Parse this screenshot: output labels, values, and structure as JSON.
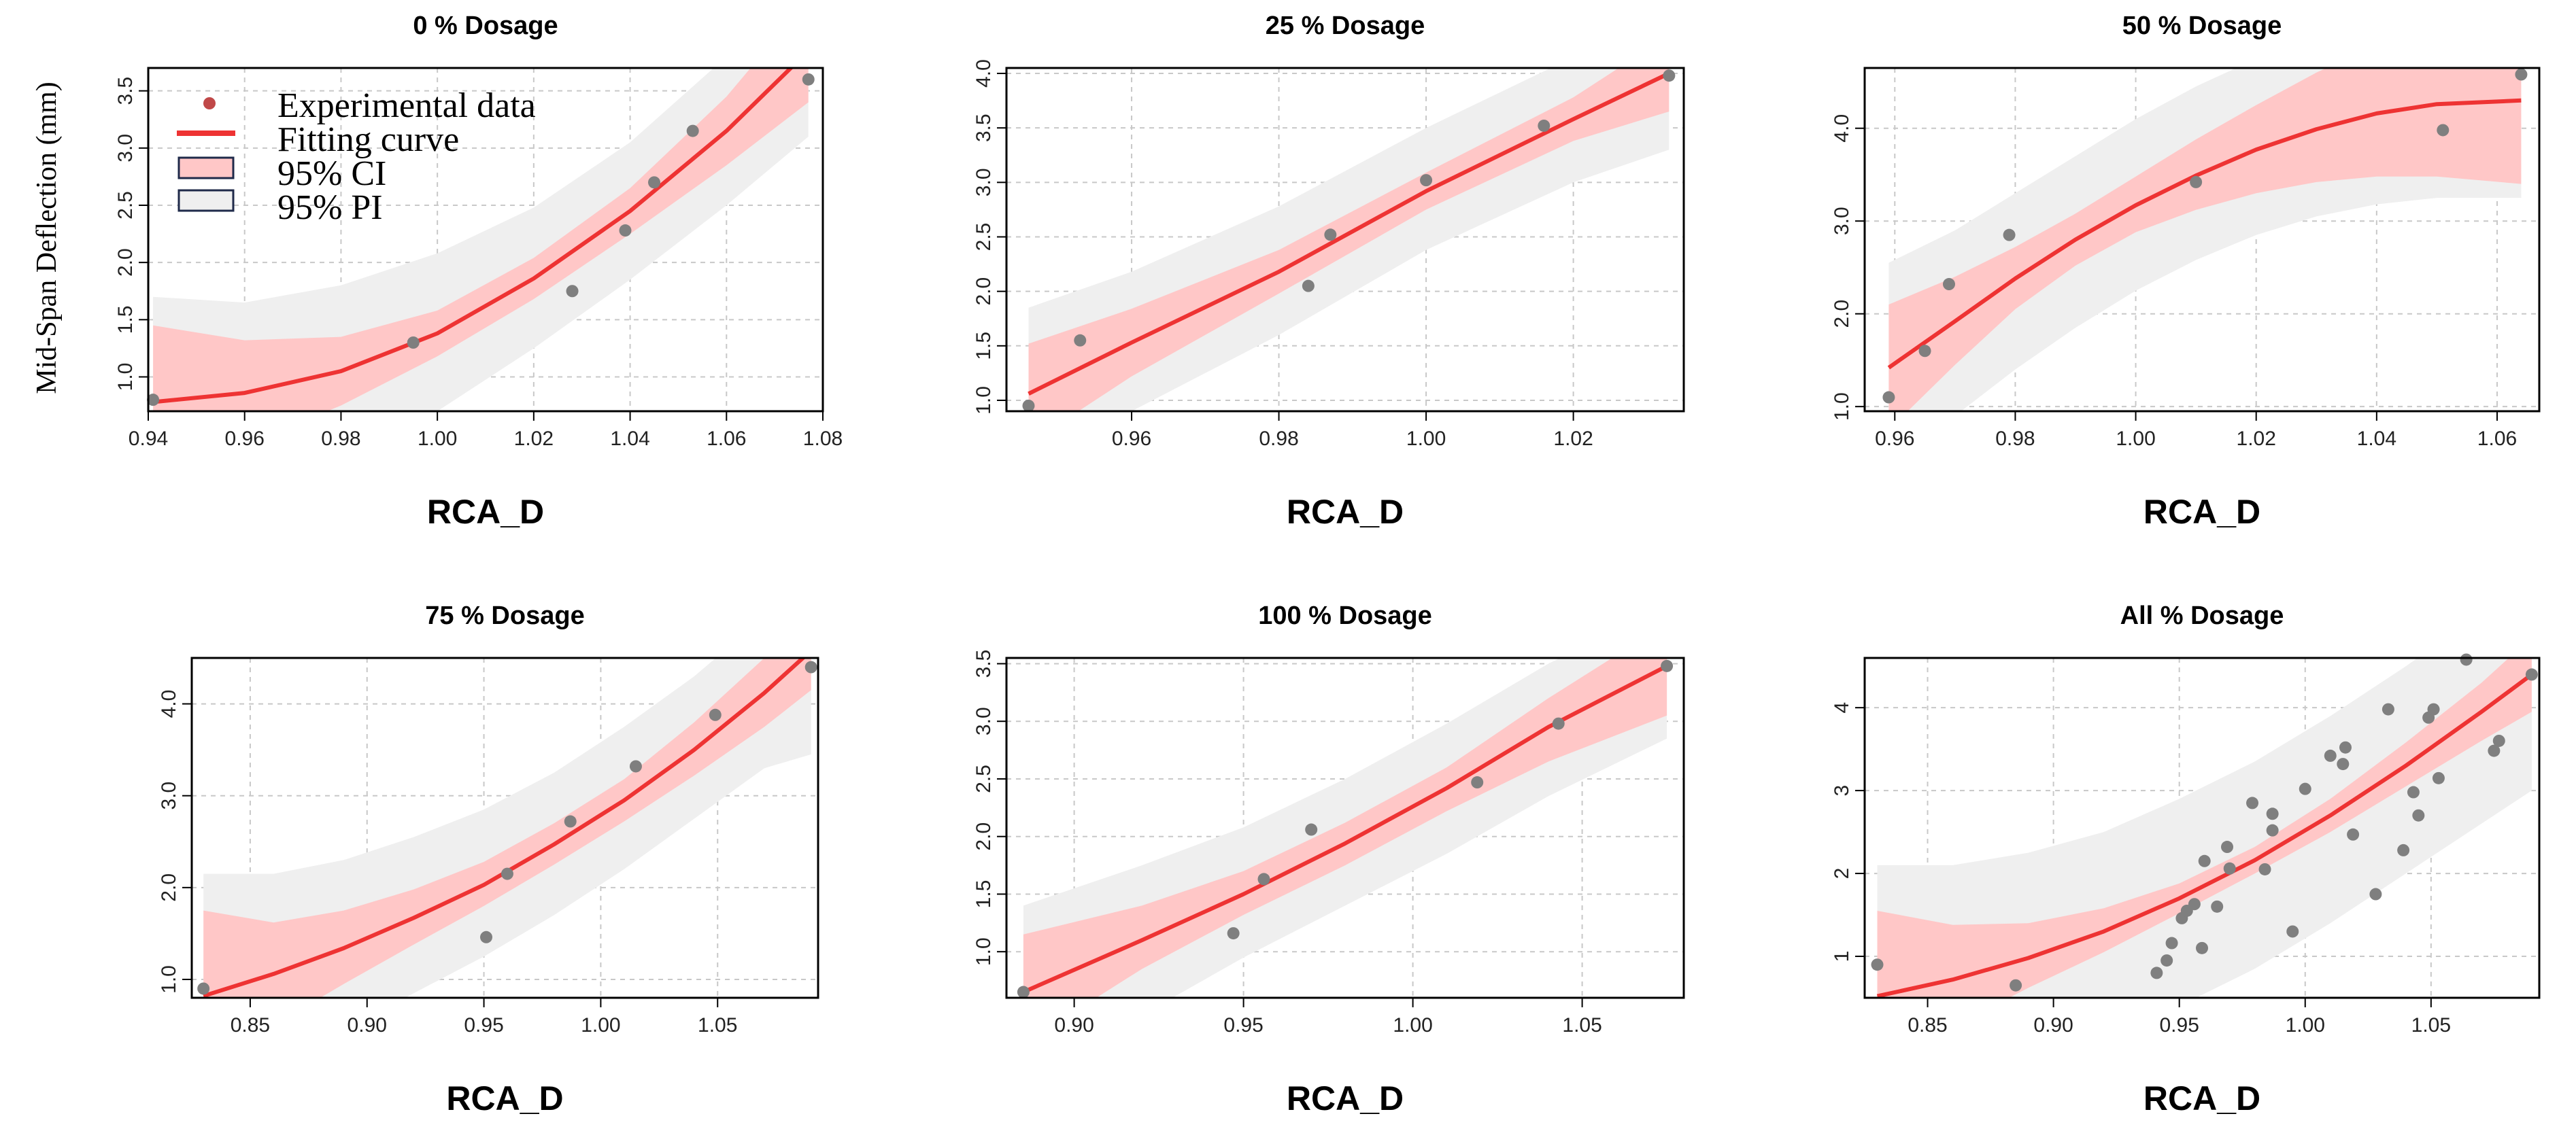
{
  "figure": {
    "ylabel": "Mid-Span Deflection (mm)",
    "legend": {
      "experimental": "Experimental data",
      "fitting": "Fitting curve",
      "ci": "95% CI",
      "pi": "95% PI"
    },
    "colors": {
      "points": "#7f7f7f",
      "curve": "#ee3333",
      "ci_band": "#ffc7c7",
      "pi_band": "#efefef",
      "legend_point": "#c04848",
      "legend_box_border": "#1f2a4a"
    }
  },
  "chart_data": [
    {
      "type": "scatter",
      "title": "0 % Dosage",
      "xlabel": "RCA_D",
      "xlim": [
        0.94,
        1.08
      ],
      "ylim": [
        0.7,
        3.7
      ],
      "xticks": [
        0.94,
        0.96,
        0.98,
        1.0,
        1.02,
        1.04,
        1.06,
        1.08
      ],
      "yticks": [
        1.0,
        1.5,
        2.0,
        2.5,
        3.0,
        3.5
      ],
      "ytick_decimals": 1,
      "xtick_decimals": 2,
      "legend": true,
      "points": {
        "x": [
          0.941,
          0.995,
          1.028,
          1.039,
          1.045,
          1.053,
          1.077
        ],
        "y": [
          0.8,
          1.3,
          1.75,
          2.28,
          2.7,
          3.15,
          3.6
        ]
      },
      "fit": {
        "x": [
          0.941,
          0.96,
          0.98,
          1.0,
          1.02,
          1.04,
          1.06,
          1.077
        ],
        "y": [
          0.78,
          0.86,
          1.05,
          1.38,
          1.86,
          2.45,
          3.15,
          3.85
        ]
      },
      "ci": {
        "x": [
          0.941,
          0.96,
          0.98,
          1.0,
          1.02,
          1.04,
          1.06,
          1.077
        ],
        "lower": [
          0.1,
          0.4,
          0.75,
          1.18,
          1.68,
          2.25,
          2.85,
          3.4
        ],
        "upper": [
          1.45,
          1.32,
          1.35,
          1.58,
          2.04,
          2.65,
          3.45,
          4.3
        ]
      },
      "pi": {
        "x": [
          0.941,
          0.96,
          0.98,
          1.0,
          1.02,
          1.04,
          1.06,
          1.077
        ],
        "lower": [
          -0.1,
          0.05,
          0.3,
          0.7,
          1.25,
          1.85,
          2.5,
          3.1
        ],
        "upper": [
          1.7,
          1.65,
          1.8,
          2.08,
          2.48,
          3.05,
          3.8,
          4.5
        ]
      }
    },
    {
      "type": "scatter",
      "title": "25 % Dosage",
      "xlabel": "RCA_D",
      "xlim": [
        0.943,
        1.035
      ],
      "ylim": [
        0.9,
        4.05
      ],
      "xticks": [
        0.96,
        0.98,
        1.0,
        1.02
      ],
      "yticks": [
        1.0,
        1.5,
        2.0,
        2.5,
        3.0,
        3.5,
        4.0
      ],
      "ytick_decimals": 1,
      "xtick_decimals": 2,
      "legend": false,
      "points": {
        "x": [
          0.946,
          0.953,
          0.984,
          0.987,
          1.0,
          1.016,
          1.033
        ],
        "y": [
          0.95,
          1.55,
          2.05,
          2.52,
          3.02,
          3.52,
          3.98
        ]
      },
      "fit": {
        "x": [
          0.946,
          0.96,
          0.98,
          1.0,
          1.02,
          1.033
        ],
        "y": [
          1.06,
          1.53,
          2.18,
          2.92,
          3.58,
          4.0
        ]
      },
      "ci": {
        "x": [
          0.946,
          0.96,
          0.98,
          1.0,
          1.02,
          1.033
        ],
        "lower": [
          0.6,
          1.22,
          1.98,
          2.75,
          3.38,
          3.65
        ],
        "upper": [
          1.52,
          1.84,
          2.38,
          3.09,
          3.78,
          4.35
        ]
      },
      "pi": {
        "x": [
          0.946,
          0.96,
          0.98,
          1.0,
          1.02,
          1.033
        ],
        "lower": [
          0.35,
          0.9,
          1.6,
          2.38,
          3.0,
          3.3
        ],
        "upper": [
          1.85,
          2.18,
          2.78,
          3.5,
          4.15,
          4.6
        ]
      }
    },
    {
      "type": "scatter",
      "title": "50 % Dosage",
      "xlabel": "RCA_D",
      "xlim": [
        0.955,
        1.067
      ],
      "ylim": [
        0.95,
        4.65
      ],
      "xticks": [
        0.96,
        0.98,
        1.0,
        1.02,
        1.04,
        1.06
      ],
      "yticks": [
        1.0,
        2.0,
        3.0,
        4.0
      ],
      "ytick_decimals": 1,
      "xtick_decimals": 2,
      "legend": false,
      "points": {
        "x": [
          0.959,
          0.965,
          0.969,
          0.979,
          1.01,
          1.051,
          1.064
        ],
        "y": [
          1.1,
          1.6,
          2.32,
          2.85,
          3.42,
          3.98,
          4.58
        ]
      },
      "fit": {
        "x": [
          0.959,
          0.97,
          0.98,
          0.99,
          1.0,
          1.01,
          1.02,
          1.03,
          1.04,
          1.05,
          1.064
        ],
        "y": [
          1.42,
          1.92,
          2.38,
          2.8,
          3.17,
          3.49,
          3.77,
          3.99,
          4.16,
          4.26,
          4.3
        ]
      },
      "ci": {
        "x": [
          0.959,
          0.97,
          0.98,
          0.99,
          1.0,
          1.01,
          1.02,
          1.03,
          1.04,
          1.05,
          1.064
        ],
        "lower": [
          0.75,
          1.45,
          2.05,
          2.52,
          2.88,
          3.12,
          3.3,
          3.42,
          3.48,
          3.48,
          3.4
        ],
        "upper": [
          2.1,
          2.4,
          2.72,
          3.08,
          3.48,
          3.88,
          4.25,
          4.6,
          4.9,
          5.1,
          5.2
        ]
      },
      "pi": {
        "x": [
          0.959,
          0.97,
          0.98,
          0.99,
          1.0,
          1.01,
          1.02,
          1.03,
          1.04,
          1.05,
          1.064
        ],
        "lower": [
          0.3,
          0.9,
          1.4,
          1.85,
          2.25,
          2.58,
          2.85,
          3.05,
          3.18,
          3.25,
          3.25
        ],
        "upper": [
          2.55,
          2.9,
          3.3,
          3.7,
          4.1,
          4.45,
          4.75,
          5.0,
          5.2,
          5.3,
          5.35
        ]
      }
    },
    {
      "type": "scatter",
      "title": "75 % Dosage",
      "xlabel": "RCA_D",
      "xlim": [
        0.825,
        1.093
      ],
      "ylim": [
        0.8,
        4.5
      ],
      "xticks": [
        0.85,
        0.9,
        0.95,
        1.0,
        1.05
      ],
      "yticks": [
        1.0,
        2.0,
        3.0,
        4.0
      ],
      "ytick_decimals": 1,
      "xtick_decimals": 2,
      "legend": false,
      "points": {
        "x": [
          0.83,
          0.951,
          0.96,
          0.987,
          1.015,
          1.049,
          1.09
        ],
        "y": [
          0.9,
          1.46,
          2.15,
          2.72,
          3.32,
          3.88,
          4.4
        ]
      },
      "fit": {
        "x": [
          0.83,
          0.86,
          0.89,
          0.92,
          0.95,
          0.98,
          1.01,
          1.04,
          1.07,
          1.09
        ],
        "y": [
          0.82,
          1.06,
          1.34,
          1.67,
          2.03,
          2.47,
          2.95,
          3.5,
          4.12,
          4.58
        ]
      },
      "ci": {
        "x": [
          0.83,
          0.86,
          0.89,
          0.92,
          0.95,
          0.98,
          1.01,
          1.04,
          1.07,
          1.09
        ],
        "lower": [
          -0.1,
          0.5,
          0.95,
          1.38,
          1.8,
          2.25,
          2.72,
          3.22,
          3.75,
          4.15
        ],
        "upper": [
          1.75,
          1.62,
          1.75,
          1.98,
          2.28,
          2.7,
          3.18,
          3.8,
          4.5,
          5.0
        ]
      },
      "pi": {
        "x": [
          0.83,
          0.86,
          0.89,
          0.92,
          0.95,
          0.98,
          1.01,
          1.04,
          1.07,
          1.09
        ],
        "lower": [
          -0.5,
          0.0,
          0.45,
          0.85,
          1.25,
          1.7,
          2.2,
          2.75,
          3.3,
          3.45
        ],
        "upper": [
          2.15,
          2.15,
          2.3,
          2.55,
          2.85,
          3.25,
          3.75,
          4.3,
          4.95,
          5.2
        ]
      }
    },
    {
      "type": "scatter",
      "title": "100 % Dosage",
      "xlabel": "RCA_D",
      "xlim": [
        0.88,
        1.08
      ],
      "ylim": [
        0.6,
        3.55
      ],
      "xticks": [
        0.9,
        0.95,
        1.0,
        1.05
      ],
      "yticks": [
        1.0,
        1.5,
        2.0,
        2.5,
        3.0,
        3.5
      ],
      "ytick_decimals": 1,
      "xtick_decimals": 2,
      "legend": false,
      "points": {
        "x": [
          0.885,
          0.947,
          0.956,
          0.97,
          1.019,
          1.043,
          1.075
        ],
        "y": [
          0.65,
          1.16,
          1.63,
          2.06,
          2.47,
          2.98,
          3.48
        ]
      },
      "fit": {
        "x": [
          0.885,
          0.92,
          0.95,
          0.98,
          1.01,
          1.04,
          1.075
        ],
        "y": [
          0.65,
          1.1,
          1.5,
          1.94,
          2.42,
          2.95,
          3.48
        ]
      },
      "ci": {
        "x": [
          0.885,
          0.92,
          0.95,
          0.98,
          1.01,
          1.04,
          1.075
        ],
        "lower": [
          0.2,
          0.85,
          1.32,
          1.75,
          2.22,
          2.65,
          3.05
        ],
        "upper": [
          1.15,
          1.4,
          1.7,
          2.12,
          2.6,
          3.2,
          3.85
        ]
      },
      "pi": {
        "x": [
          0.885,
          0.92,
          0.95,
          0.98,
          1.01,
          1.04,
          1.075
        ],
        "lower": [
          -0.1,
          0.45,
          0.95,
          1.4,
          1.85,
          2.35,
          2.85
        ],
        "upper": [
          1.4,
          1.75,
          2.08,
          2.5,
          2.98,
          3.5,
          4.0
        ]
      }
    },
    {
      "type": "scatter",
      "title": "All % Dosage",
      "xlabel": "RCA_D",
      "xlim": [
        0.825,
        1.093
      ],
      "ylim": [
        0.5,
        4.6
      ],
      "xticks": [
        0.85,
        0.9,
        0.95,
        1.0,
        1.05
      ],
      "yticks": [
        1,
        2,
        3,
        4
      ],
      "ytick_decimals": 0,
      "xtick_decimals": 2,
      "legend": false,
      "points": {
        "x": [
          0.83,
          0.885,
          0.941,
          0.945,
          0.947,
          0.951,
          0.953,
          0.956,
          0.959,
          0.96,
          0.965,
          0.969,
          0.97,
          0.979,
          0.984,
          0.987,
          0.987,
          0.995,
          1.0,
          1.01,
          1.015,
          1.016,
          1.019,
          1.028,
          1.033,
          1.039,
          1.043,
          1.045,
          1.049,
          1.051,
          1.053,
          1.064,
          1.075,
          1.077,
          1.09
        ],
        "y": [
          0.9,
          0.65,
          0.8,
          0.95,
          1.16,
          1.46,
          1.55,
          1.63,
          1.1,
          2.15,
          1.6,
          2.32,
          2.06,
          2.85,
          2.05,
          2.52,
          2.72,
          1.3,
          3.02,
          3.42,
          3.32,
          3.52,
          2.47,
          1.75,
          3.98,
          2.28,
          2.98,
          2.7,
          3.88,
          3.98,
          3.15,
          4.58,
          3.48,
          3.6,
          4.4
        ]
      },
      "fit": {
        "x": [
          0.83,
          0.86,
          0.89,
          0.92,
          0.95,
          0.98,
          1.01,
          1.04,
          1.07,
          1.09
        ],
        "y": [
          0.52,
          0.72,
          0.98,
          1.3,
          1.7,
          2.16,
          2.7,
          3.3,
          3.95,
          4.4
        ]
      },
      "ci": {
        "x": [
          0.83,
          0.86,
          0.89,
          0.92,
          0.95,
          0.98,
          1.01,
          1.04,
          1.07,
          1.09
        ],
        "lower": [
          -0.4,
          0.15,
          0.62,
          1.05,
          1.52,
          2.0,
          2.5,
          3.05,
          3.6,
          3.95
        ],
        "upper": [
          1.55,
          1.38,
          1.4,
          1.58,
          1.88,
          2.32,
          2.9,
          3.58,
          4.3,
          4.85
        ]
      },
      "pi": {
        "x": [
          0.83,
          0.86,
          0.89,
          0.92,
          0.95,
          0.98,
          1.01,
          1.04,
          1.07,
          1.09
        ],
        "lower": [
          -1.0,
          -0.7,
          -0.4,
          0.0,
          0.4,
          0.85,
          1.4,
          2.0,
          2.6,
          3.0
        ],
        "upper": [
          2.1,
          2.1,
          2.25,
          2.5,
          2.9,
          3.35,
          3.9,
          4.5,
          5.15,
          5.7
        ]
      }
    }
  ]
}
